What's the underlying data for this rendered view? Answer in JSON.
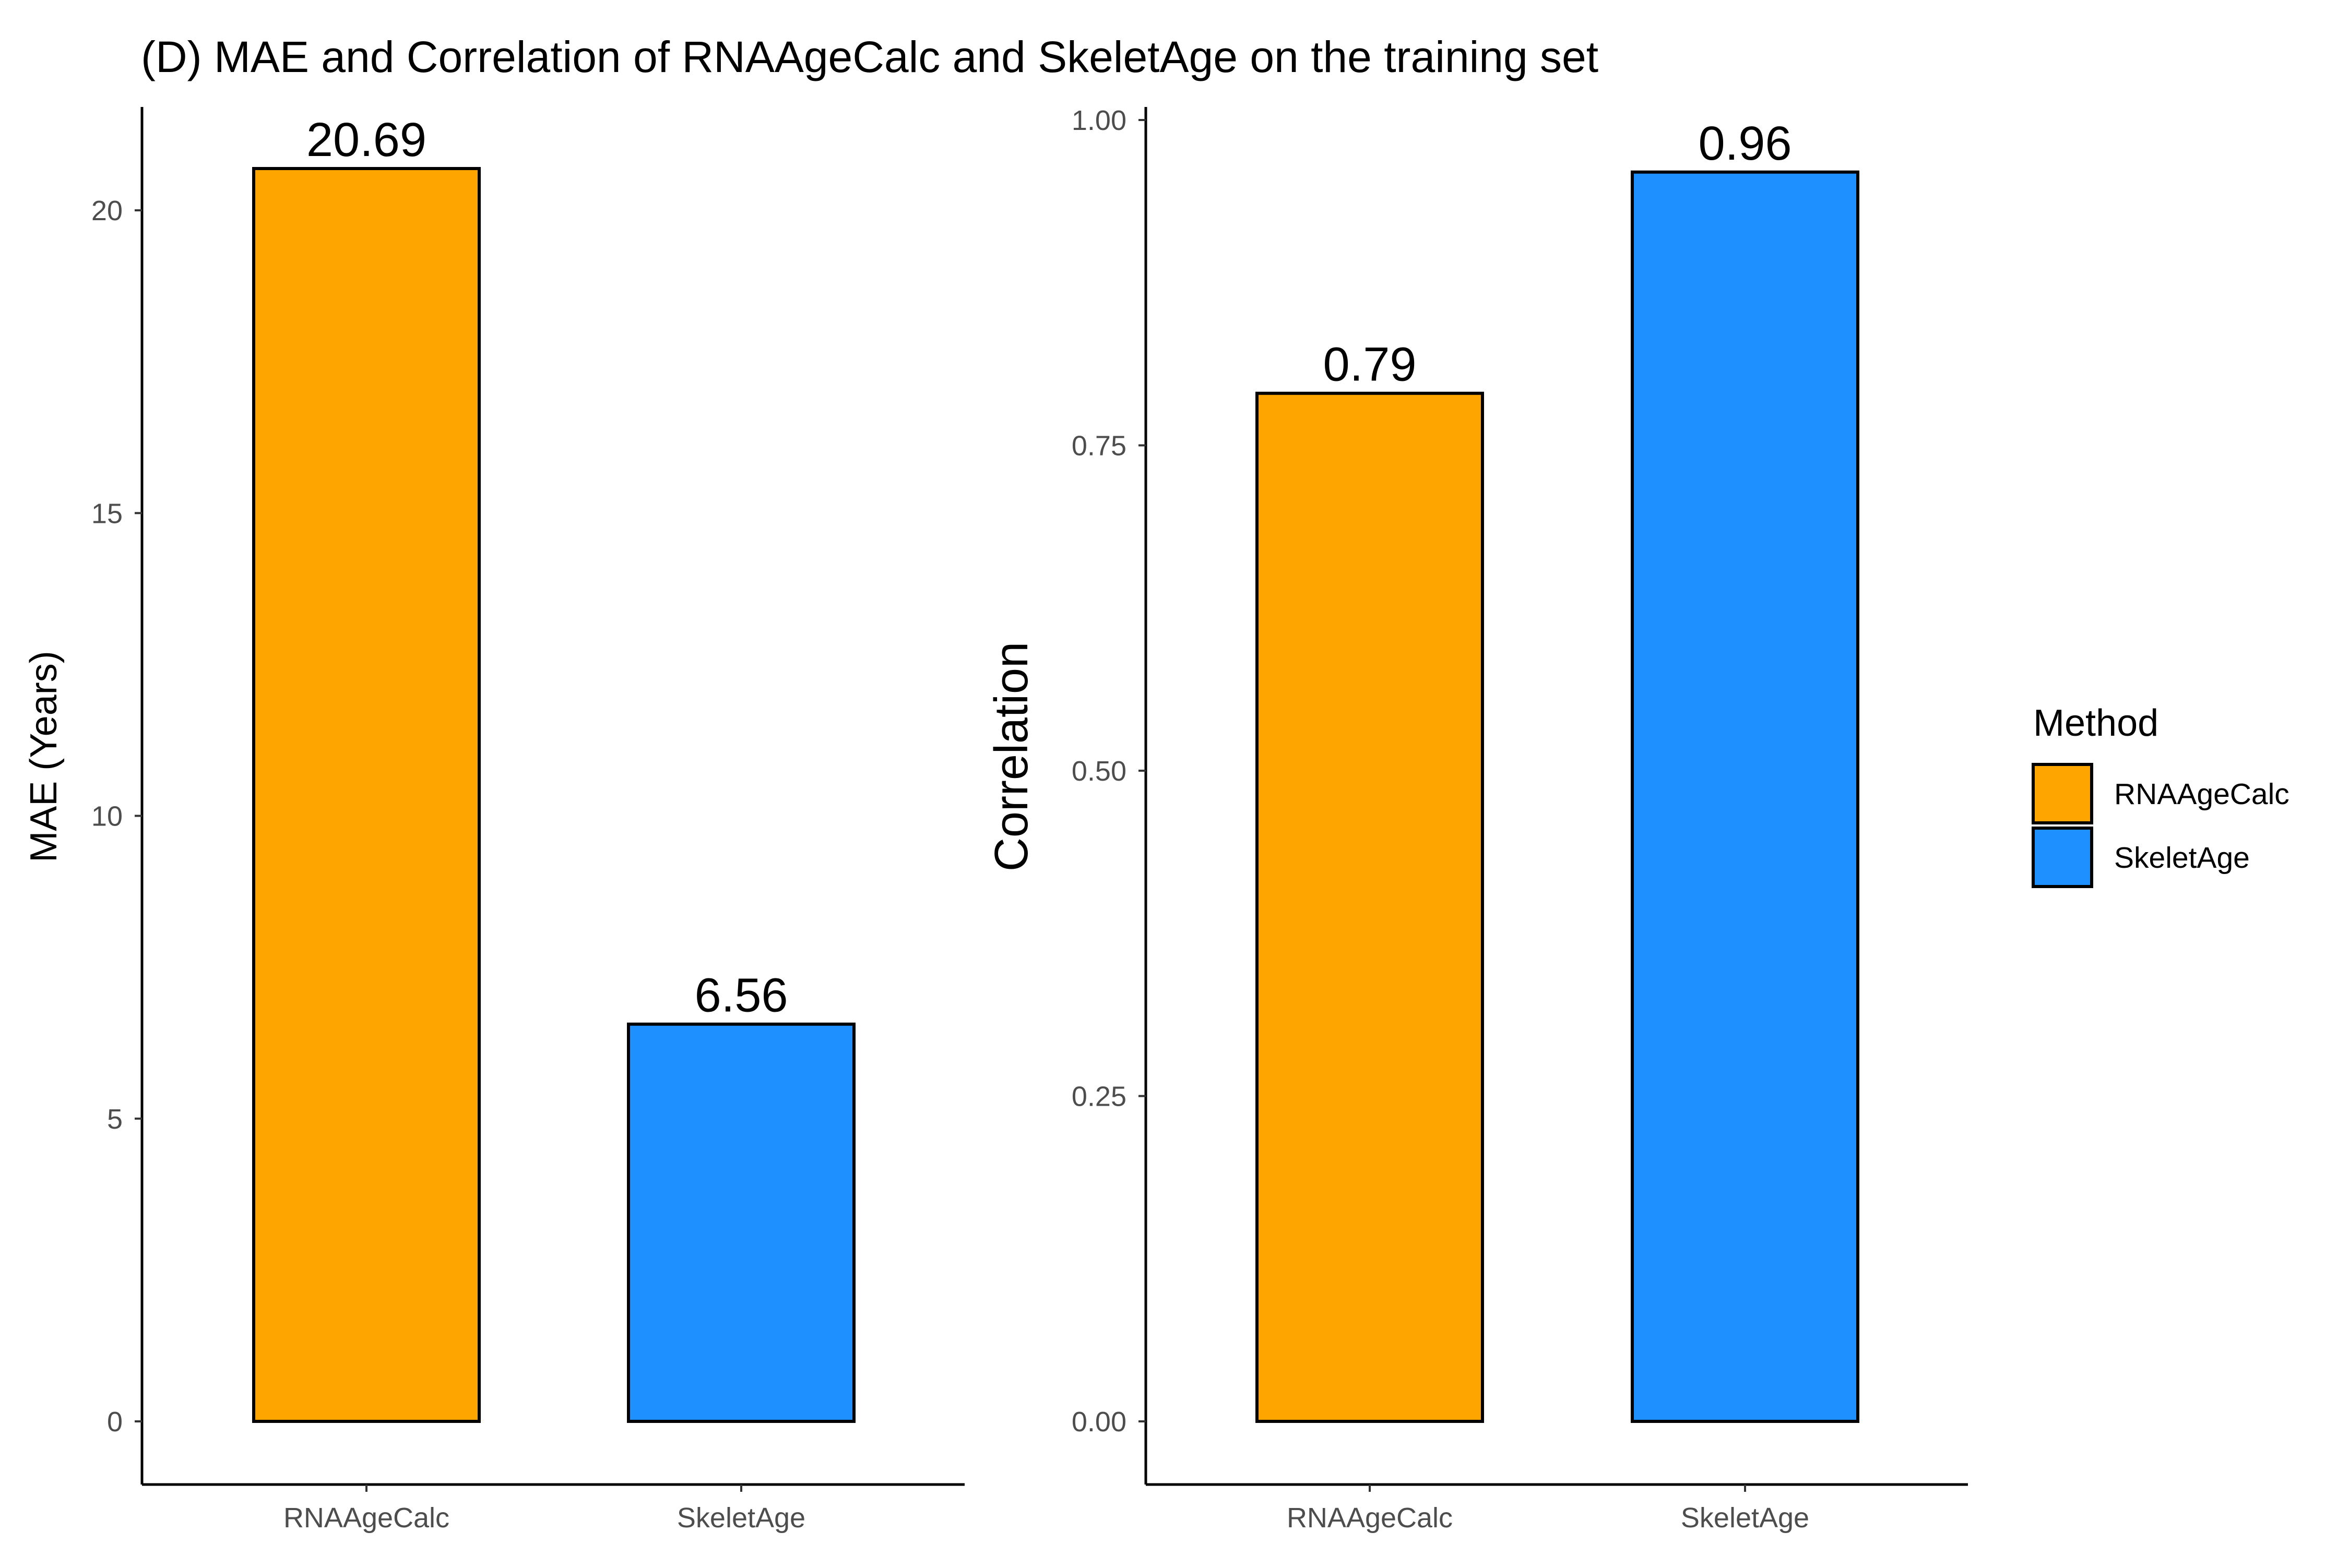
{
  "title": "(D) MAE and Correlation of RNAAgeCalc and SkeletAge on the training set",
  "colors": {
    "RNAAgeCalc": "#FFA500",
    "SkeletAge": "#1E90FF"
  },
  "legend": {
    "title": "Method",
    "items": [
      {
        "label": "RNAAgeCalc",
        "color": "#FFA500"
      },
      {
        "label": "SkeletAge",
        "color": "#1E90FF"
      }
    ]
  },
  "chart_data": [
    {
      "type": "bar",
      "categories": [
        "RNAAgeCalc",
        "SkeletAge"
      ],
      "values": [
        20.69,
        6.56
      ],
      "value_labels": [
        "20.69",
        "6.56"
      ],
      "xlabel": "",
      "ylabel": "MAE (Years)",
      "ylim": [
        0,
        20.69
      ],
      "yticks": [
        0,
        5,
        10,
        15,
        20
      ],
      "ytick_labels": [
        "0",
        "5",
        "10",
        "15",
        "20"
      ]
    },
    {
      "type": "bar",
      "categories": [
        "RNAAgeCalc",
        "SkeletAge"
      ],
      "values": [
        0.79,
        0.96
      ],
      "value_labels": [
        "0.79",
        "0.96"
      ],
      "xlabel": "",
      "ylabel": "Correlation",
      "ylim": [
        0,
        1.0
      ],
      "yticks": [
        0,
        0.25,
        0.5,
        0.75,
        1.0
      ],
      "ytick_labels": [
        "0.00",
        "0.25",
        "0.50",
        "0.75",
        "1.00"
      ]
    }
  ]
}
